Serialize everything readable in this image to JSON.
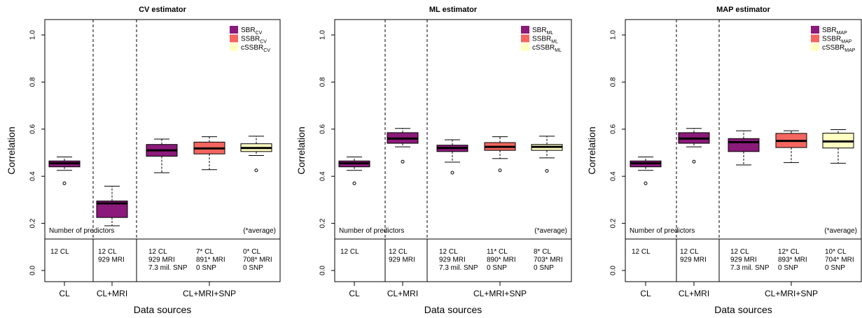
{
  "chart_data": [
    {
      "type": "box",
      "title": "CV estimator",
      "ylabel": "Correlation",
      "xlabel": "Data sources",
      "ylim": [
        0,
        1
      ],
      "y_ticks": [
        "0.0",
        "0.2",
        "0.4",
        "0.6",
        "0.8",
        "1.0"
      ],
      "x_groups": [
        "CL",
        "CL+MRI",
        "CL+MRI+SNP"
      ],
      "legend": {
        "position": "top-right",
        "entries": [
          {
            "main": "SBR",
            "sub": "CV",
            "color": "#8b1a7a"
          },
          {
            "main": "SSBR",
            "sub": "CV",
            "color": "#f4665f"
          },
          {
            "main": "cSSBR",
            "sub": "CV",
            "color": "#ffffc2"
          }
        ]
      },
      "predictor_label": "Number of predictors",
      "average_note": "(*average)",
      "predictor_counts": [
        [
          "12 CL"
        ],
        [
          "12 CL",
          "929 MRI"
        ],
        [
          "12 CL",
          "929 MRI",
          "7.3 mil. SNP"
        ],
        [
          "7* CL",
          "891* MRI",
          "0 SNP"
        ],
        [
          "0* CL",
          "708* MRI",
          "0 SNP"
        ]
      ],
      "boxes": [
        {
          "group": "CL",
          "series": "SBR",
          "color": "#8b1a7a",
          "whisker_low": 0.425,
          "q1": 0.44,
          "median": 0.455,
          "q3": 0.465,
          "whisker_high": 0.482,
          "outliers": [
            0.37
          ]
        },
        {
          "group": "CL+MRI",
          "series": "SBR",
          "color": "#8b1a7a",
          "whisker_low": 0.19,
          "q1": 0.225,
          "median": 0.285,
          "q3": 0.295,
          "whisker_high": 0.358,
          "outliers": []
        },
        {
          "group": "CL+MRI+SNP",
          "series": "SBR",
          "color": "#8b1a7a",
          "whisker_low": 0.415,
          "q1": 0.485,
          "median": 0.51,
          "q3": 0.535,
          "whisker_high": 0.558,
          "outliers": []
        },
        {
          "group": "CL+MRI+SNP",
          "series": "SSBR",
          "color": "#f4665f",
          "whisker_low": 0.428,
          "q1": 0.495,
          "median": 0.518,
          "q3": 0.545,
          "whisker_high": 0.568,
          "outliers": []
        },
        {
          "group": "CL+MRI+SNP",
          "series": "cSSBR",
          "color": "#ffffc2",
          "whisker_low": 0.488,
          "q1": 0.505,
          "median": 0.52,
          "q3": 0.538,
          "whisker_high": 0.57,
          "outliers": [
            0.425
          ]
        }
      ]
    },
    {
      "type": "box",
      "title": "ML estimator",
      "ylabel": "Correlation",
      "xlabel": "Data sources",
      "ylim": [
        0,
        1
      ],
      "y_ticks": [
        "0.0",
        "0.2",
        "0.4",
        "0.6",
        "0.8",
        "1.0"
      ],
      "x_groups": [
        "CL",
        "CL+MRI",
        "CL+MRI+SNP"
      ],
      "legend": {
        "position": "top-right",
        "entries": [
          {
            "main": "SBR",
            "sub": "ML",
            "color": "#8b1a7a"
          },
          {
            "main": "SSBR",
            "sub": "ML",
            "color": "#f4665f"
          },
          {
            "main": "cSSBR",
            "sub": "ML",
            "color": "#ffffc2"
          }
        ]
      },
      "predictor_label": "Number of predictors",
      "average_note": "(*average)",
      "predictor_counts": [
        [
          "12 CL"
        ],
        [
          "12 CL",
          "929 MRI"
        ],
        [
          "12 CL",
          "929 MRI",
          "7.3 mil. SNP"
        ],
        [
          "11* CL",
          "890* MRI",
          "0 SNP"
        ],
        [
          "8* CL",
          "703* MRI",
          "0 SNP"
        ]
      ],
      "boxes": [
        {
          "group": "CL",
          "series": "SBR",
          "color": "#8b1a7a",
          "whisker_low": 0.425,
          "q1": 0.44,
          "median": 0.455,
          "q3": 0.465,
          "whisker_high": 0.482,
          "outliers": [
            0.37
          ]
        },
        {
          "group": "CL+MRI",
          "series": "SBR",
          "color": "#8b1a7a",
          "whisker_low": 0.525,
          "q1": 0.54,
          "median": 0.56,
          "q3": 0.585,
          "whisker_high": 0.603,
          "outliers": [
            0.462
          ]
        },
        {
          "group": "CL+MRI+SNP",
          "series": "SBR",
          "color": "#8b1a7a",
          "whisker_low": 0.46,
          "q1": 0.505,
          "median": 0.52,
          "q3": 0.532,
          "whisker_high": 0.555,
          "outliers": [
            0.415
          ]
        },
        {
          "group": "CL+MRI+SNP",
          "series": "SSBR",
          "color": "#f4665f",
          "whisker_low": 0.475,
          "q1": 0.51,
          "median": 0.525,
          "q3": 0.543,
          "whisker_high": 0.568,
          "outliers": [
            0.425
          ]
        },
        {
          "group": "CL+MRI+SNP",
          "series": "cSSBR",
          "color": "#ffffc2",
          "whisker_low": 0.478,
          "q1": 0.51,
          "median": 0.525,
          "q3": 0.535,
          "whisker_high": 0.57,
          "outliers": [
            0.423
          ]
        }
      ]
    },
    {
      "type": "box",
      "title": "MAP estimator",
      "ylabel": "Correlation",
      "xlabel": "Data sources",
      "ylim": [
        0,
        1
      ],
      "y_ticks": [
        "0.0",
        "0.2",
        "0.4",
        "0.6",
        "0.8",
        "1.0"
      ],
      "x_groups": [
        "CL",
        "CL+MRI",
        "CL+MRI+SNP"
      ],
      "legend": {
        "position": "top-right",
        "entries": [
          {
            "main": "SBR",
            "sub": "MAP",
            "color": "#8b1a7a"
          },
          {
            "main": "SSBR",
            "sub": "MAP",
            "color": "#f4665f"
          },
          {
            "main": "cSSBR",
            "sub": "MAP",
            "color": "#ffffc2"
          }
        ]
      },
      "predictor_label": "Number of predictors",
      "average_note": "(*average)",
      "predictor_counts": [
        [
          "12 CL"
        ],
        [
          "12 CL",
          "929 MRI"
        ],
        [
          "12 CL",
          "929 MRI",
          "7.3 mil. SNP"
        ],
        [
          "12* CL",
          "893* MRI",
          "0 SNP"
        ],
        [
          "10* CL",
          "704* MRI",
          "0 SNP"
        ]
      ],
      "boxes": [
        {
          "group": "CL",
          "series": "SBR",
          "color": "#8b1a7a",
          "whisker_low": 0.425,
          "q1": 0.44,
          "median": 0.455,
          "q3": 0.465,
          "whisker_high": 0.482,
          "outliers": [
            0.37
          ]
        },
        {
          "group": "CL+MRI",
          "series": "SBR",
          "color": "#8b1a7a",
          "whisker_low": 0.525,
          "q1": 0.54,
          "median": 0.56,
          "q3": 0.585,
          "whisker_high": 0.603,
          "outliers": [
            0.462
          ]
        },
        {
          "group": "CL+MRI+SNP",
          "series": "SBR",
          "color": "#8b1a7a",
          "whisker_low": 0.448,
          "q1": 0.505,
          "median": 0.545,
          "q3": 0.56,
          "whisker_high": 0.593,
          "outliers": []
        },
        {
          "group": "CL+MRI+SNP",
          "series": "SSBR",
          "color": "#f4665f",
          "whisker_low": 0.458,
          "q1": 0.522,
          "median": 0.55,
          "q3": 0.582,
          "whisker_high": 0.593,
          "outliers": []
        },
        {
          "group": "CL+MRI+SNP",
          "series": "cSSBR",
          "color": "#ffffc2",
          "whisker_low": 0.455,
          "q1": 0.52,
          "median": 0.548,
          "q3": 0.583,
          "whisker_high": 0.598,
          "outliers": []
        }
      ]
    }
  ]
}
